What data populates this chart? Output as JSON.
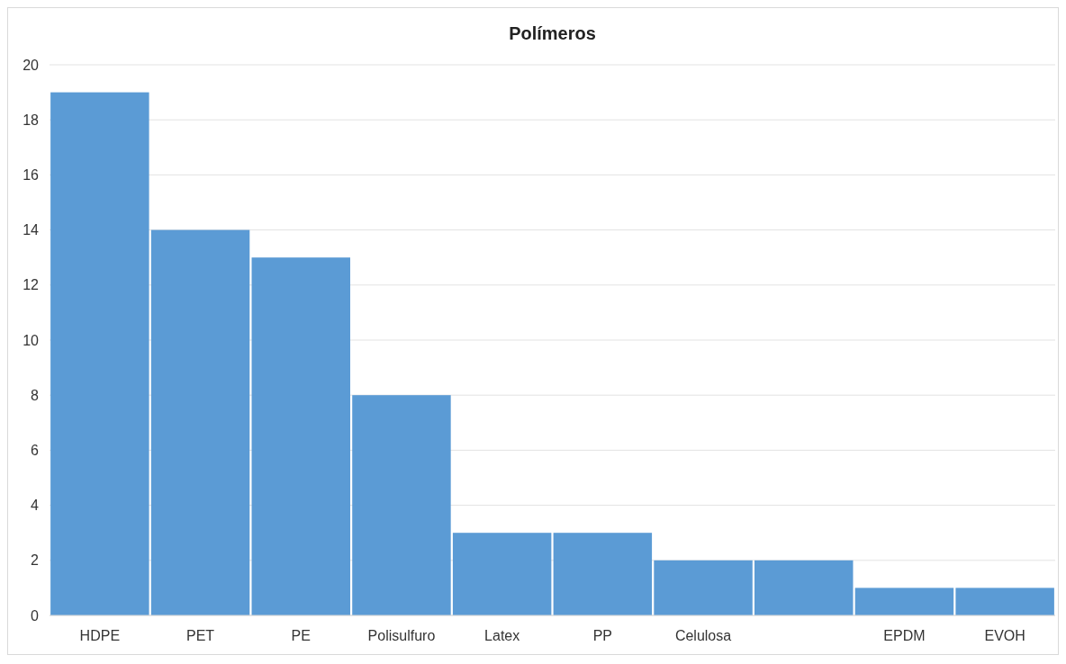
{
  "chart_data": {
    "type": "bar",
    "title": "Polímeros",
    "categories": [
      "HDPE",
      "PET",
      "PE",
      "Polisulfuro",
      "Latex",
      "PP",
      "Celulosa",
      null,
      "EPDM",
      "EVOH"
    ],
    "values": [
      19,
      14,
      13,
      8,
      3,
      3,
      2,
      2,
      1,
      1
    ],
    "color": "#5b9bd5",
    "ylim": [
      0,
      20
    ],
    "yticks": [
      0,
      2,
      4,
      6,
      8,
      10,
      12,
      14,
      16,
      18,
      20
    ],
    "grid": "y"
  }
}
